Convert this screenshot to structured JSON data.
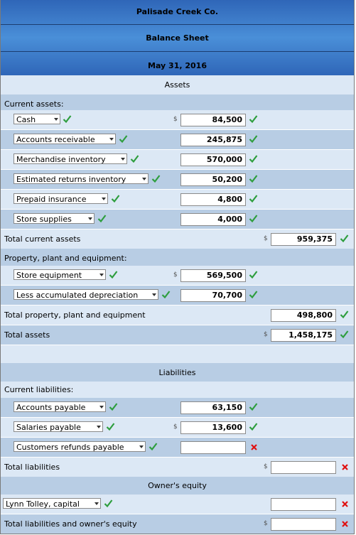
{
  "header": {
    "company": "Palisade Creek Co.",
    "title": "Balance Sheet",
    "date": "May 31, 2016"
  },
  "sections": {
    "assets": "Assets",
    "liabilities": "Liabilities",
    "equity": "Owner's equity"
  },
  "labels": {
    "current_assets": "Current assets:",
    "total_current_assets": "Total current assets",
    "ppe": "Property, plant and equipment:",
    "total_ppe": "Total property, plant and equipment",
    "total_assets": "Total assets",
    "current_liabilities": "Current liabilities:",
    "total_liabilities": "Total liabilities",
    "total_liab_equity": "Total liabilities and owner's equity"
  },
  "currency": "$",
  "current_assets": [
    {
      "name": "Cash",
      "value": "84,500"
    },
    {
      "name": "Accounts receivable",
      "value": "245,875"
    },
    {
      "name": "Merchandise inventory",
      "value": "570,000"
    },
    {
      "name": "Estimated returns inventory",
      "value": "50,200"
    },
    {
      "name": "Prepaid insurance",
      "value": "4,800"
    },
    {
      "name": "Store supplies",
      "value": "4,000"
    }
  ],
  "total_current_assets": "959,375",
  "ppe": [
    {
      "name": "Store equipment",
      "value": "569,500"
    },
    {
      "name": "Less accumulated depreciation",
      "value": "70,700"
    }
  ],
  "total_ppe": "498,800",
  "total_assets": "1,458,175",
  "current_liabilities": [
    {
      "name": "Accounts payable",
      "value": "63,150"
    },
    {
      "name": "Salaries payable",
      "value": "13,600"
    },
    {
      "name": "Customers refunds payable",
      "value": ""
    }
  ],
  "total_liabilities": "",
  "equity": {
    "name": "Lynn Tolley, capital",
    "value": ""
  },
  "total_liab_equity": "",
  "colors": {
    "check": "#2e9e3e",
    "cross": "#e01010",
    "header": "#3a7ccb"
  }
}
